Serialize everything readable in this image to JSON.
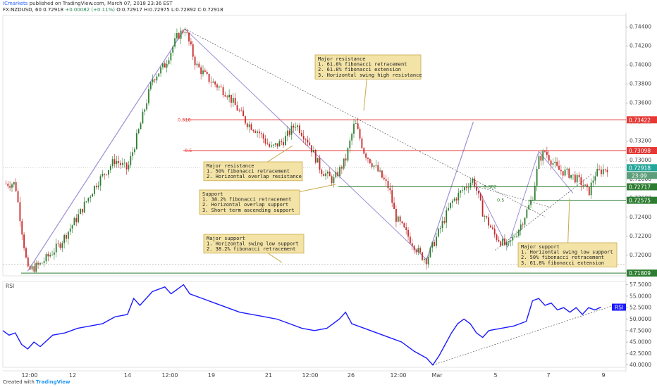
{
  "header": {
    "author": "ICmarkets",
    "published": "published on TradingView.com, March 07, 2018 23:36 EST",
    "symbol": "FX:NZDUSD, 60",
    "last": "0.72918",
    "change": "+0.00082 (+0.11%)",
    "open": "O:0.72917",
    "high": "H:0.72975",
    "low": "L:0.72892",
    "close": "C:0.72918"
  },
  "footer": {
    "created": "Created with",
    "brand": "TradingView"
  },
  "colors": {
    "up": "#26a69a",
    "down": "#ef5350",
    "candle": "#2e7d32",
    "candle_down": "#c62828",
    "resistance": "#e53935",
    "support": "#2e7d32",
    "rsi": "#1a1aff",
    "drawing": "#9c8fd6",
    "note_bg": "#f3e3a6",
    "note_border": "#c9a94a"
  },
  "chart_data": [
    {
      "type": "line",
      "title": "FX:NZDUSD, 60",
      "y_axis": {
        "ylim": [
          0.7178,
          0.7452
        ],
        "ticks": [
          "0.74400",
          "0.74200",
          "0.74000",
          "0.73800",
          "0.73600",
          "0.73400",
          "0.73200",
          "0.73000",
          "0.72800",
          "0.72600",
          "0.72400",
          "0.72200",
          "0.72000",
          "0.71800"
        ]
      },
      "x_axis": {
        "ticks": [
          "12:00",
          "12",
          "14",
          "12:00",
          "19",
          "21",
          "12:00",
          "26",
          "12:00",
          "Mar",
          "5",
          "7",
          "9"
        ],
        "xlim": [
          0,
          1
        ]
      },
      "series": [
        {
          "values": [
            [
              0.02,
              0.7275
            ],
            [
              0.04,
              0.7183
            ],
            [
              0.06,
              0.719
            ],
            [
              0.09,
              0.721
            ],
            [
              0.12,
              0.724
            ],
            [
              0.15,
              0.7275
            ],
            [
              0.18,
              0.73
            ],
            [
              0.2,
              0.729
            ],
            [
              0.22,
              0.7335
            ],
            [
              0.24,
              0.7385
            ],
            [
              0.26,
              0.74
            ],
            [
              0.28,
              0.743
            ],
            [
              0.292,
              0.7438
            ],
            [
              0.31,
              0.74
            ],
            [
              0.33,
              0.7385
            ],
            [
              0.36,
              0.737
            ],
            [
              0.39,
              0.734
            ],
            [
              0.41,
              0.733
            ],
            [
              0.43,
              0.7312
            ],
            [
              0.45,
              0.732
            ],
            [
              0.47,
              0.7338
            ],
            [
              0.49,
              0.732
            ],
            [
              0.51,
              0.729
            ],
            [
              0.53,
              0.7278
            ],
            [
              0.55,
              0.73
            ],
            [
              0.565,
              0.734
            ],
            [
              0.58,
              0.7308
            ],
            [
              0.6,
              0.729
            ],
            [
              0.62,
              0.727
            ],
            [
              0.63,
              0.724
            ],
            [
              0.65,
              0.722
            ],
            [
              0.67,
              0.72
            ],
            [
              0.68,
              0.7195
            ],
            [
              0.7,
              0.7225
            ],
            [
              0.72,
              0.7255
            ],
            [
              0.74,
              0.727
            ],
            [
              0.755,
              0.728
            ],
            [
              0.77,
              0.7245
            ],
            [
              0.79,
              0.722
            ],
            [
              0.81,
              0.7208
            ],
            [
              0.83,
              0.723
            ],
            [
              0.85,
              0.726
            ],
            [
              0.86,
              0.73
            ],
            [
              0.87,
              0.7309
            ],
            [
              0.89,
              0.729
            ],
            [
              0.91,
              0.7285
            ],
            [
              0.93,
              0.7275
            ],
            [
              0.94,
              0.7265
            ],
            [
              0.95,
              0.7285
            ],
            [
              0.97,
              0.7292
            ]
          ]
        }
      ],
      "current_price": "0.72918",
      "countdown": "23:09",
      "levels": [
        {
          "price": 0.73422,
          "label": "0.73422",
          "kind": "resistance"
        },
        {
          "price": 0.73098,
          "label": "0.73098",
          "kind": "resistance"
        },
        {
          "price": 0.72717,
          "label": "0.72717",
          "kind": "support"
        },
        {
          "price": 0.72575,
          "label": "0.72575",
          "kind": "support"
        },
        {
          "price": 0.71809,
          "label": "0.71809",
          "kind": "support"
        }
      ],
      "fib_labels": [
        "0.618",
        "0.5",
        "0.382",
        "0.5"
      ],
      "annotations": [
        {
          "title": "Major resistance",
          "lines": [
            "1. 61.8% fibonacci retracement",
            "2. 61.8% fibonacci extension",
            "3. Horizontal swing high resistance"
          ]
        },
        {
          "title": "Major resistance",
          "lines": [
            "1. 50% fibonacci retracement",
            "2. Horizontal overlap resistance"
          ]
        },
        {
          "title": "Support",
          "lines": [
            "1. 38.2% fibonacci retracement",
            "2. Horizontal overlap support",
            "3. Short term ascending support"
          ]
        },
        {
          "title": "Major support",
          "lines": [
            "1. Horizontal swing low support",
            "2. 38.2% fibonacci retracement"
          ]
        },
        {
          "title": "Major support",
          "lines": [
            "1. Horizontal swing low support",
            "2. 50% fibonacci retracement",
            "3. 61.8% fibonacci extension"
          ]
        }
      ]
    },
    {
      "type": "line",
      "title": "RSI",
      "y_axis": {
        "ylim": [
          39.5,
          58.2
        ],
        "ticks": [
          "57.5000",
          "55.0000",
          "52.5000",
          "50.0000",
          "47.5000",
          "45.0000",
          "42.5000",
          "40.0000"
        ]
      },
      "series": [
        {
          "name": "RSI",
          "values": [
            [
              0.0,
              47.5
            ],
            [
              0.01,
              46.5
            ],
            [
              0.02,
              47.0
            ],
            [
              0.03,
              44.5
            ],
            [
              0.04,
              43.5
            ],
            [
              0.05,
              45.0
            ],
            [
              0.06,
              44.0
            ],
            [
              0.08,
              46.5
            ],
            [
              0.1,
              47.0
            ],
            [
              0.12,
              48.0
            ],
            [
              0.14,
              48.5
            ],
            [
              0.16,
              49.0
            ],
            [
              0.18,
              50.5
            ],
            [
              0.2,
              51.0
            ],
            [
              0.21,
              54.5
            ],
            [
              0.22,
              53.0
            ],
            [
              0.24,
              56.0
            ],
            [
              0.26,
              57.0
            ],
            [
              0.27,
              55.5
            ],
            [
              0.29,
              57.5
            ],
            [
              0.3,
              55.5
            ],
            [
              0.32,
              54.5
            ],
            [
              0.34,
              53.5
            ],
            [
              0.36,
              52.5
            ],
            [
              0.38,
              51.5
            ],
            [
              0.4,
              51.0
            ],
            [
              0.42,
              50.5
            ],
            [
              0.44,
              50.0
            ],
            [
              0.46,
              49.0
            ],
            [
              0.48,
              48.0
            ],
            [
              0.5,
              47.5
            ],
            [
              0.52,
              48.0
            ],
            [
              0.54,
              50.0
            ],
            [
              0.55,
              51.5
            ],
            [
              0.56,
              49.0
            ],
            [
              0.58,
              48.0
            ],
            [
              0.6,
              47.0
            ],
            [
              0.62,
              46.0
            ],
            [
              0.64,
              45.0
            ],
            [
              0.66,
              43.0
            ],
            [
              0.68,
              41.5
            ],
            [
              0.69,
              40.0
            ],
            [
              0.7,
              42.0
            ],
            [
              0.71,
              44.5
            ],
            [
              0.72,
              47.0
            ],
            [
              0.73,
              49.0
            ],
            [
              0.74,
              50.0
            ],
            [
              0.75,
              49.0
            ],
            [
              0.76,
              47.0
            ],
            [
              0.77,
              46.0
            ],
            [
              0.78,
              47.5
            ],
            [
              0.8,
              48.0
            ],
            [
              0.82,
              48.5
            ],
            [
              0.83,
              49.0
            ],
            [
              0.84,
              49.5
            ],
            [
              0.85,
              54.0
            ],
            [
              0.86,
              54.5
            ],
            [
              0.87,
              53.0
            ],
            [
              0.88,
              53.5
            ],
            [
              0.89,
              52.0
            ],
            [
              0.9,
              52.5
            ],
            [
              0.91,
              51.5
            ],
            [
              0.92,
              52.5
            ],
            [
              0.93,
              51.0
            ],
            [
              0.94,
              52.5
            ],
            [
              0.95,
              52.0
            ],
            [
              0.96,
              52.6
            ]
          ]
        }
      ],
      "current_label": "RSI"
    }
  ]
}
